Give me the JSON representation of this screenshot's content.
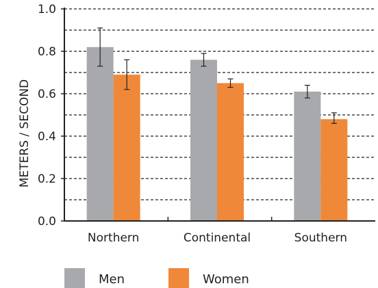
{
  "chart_data": {
    "type": "bar",
    "categories": [
      "Northern",
      "Continental",
      "Southern"
    ],
    "series": [
      {
        "name": "Men",
        "color": "#a7a9ac",
        "values": [
          0.82,
          0.76,
          0.61
        ],
        "error_low": [
          0.73,
          0.73,
          0.58
        ],
        "error_high": [
          0.91,
          0.79,
          0.64
        ]
      },
      {
        "name": "Women",
        "color": "#f0883a",
        "values": [
          0.69,
          0.65,
          0.48
        ],
        "error_low": [
          0.62,
          0.63,
          0.46
        ],
        "error_high": [
          0.76,
          0.67,
          0.51
        ]
      }
    ],
    "ylabel": "METERS / SECOND",
    "ylim": [
      0,
      1.0
    ],
    "yticks": [
      "0.0",
      "0.2",
      "0.4",
      "0.6",
      "0.8",
      "1.0"
    ],
    "ytick_values": [
      0,
      0.2,
      0.4,
      0.6,
      0.8,
      1.0
    ],
    "gridlines": [
      0.1,
      0.2,
      0.3,
      0.4,
      0.5,
      0.6,
      0.7,
      0.8,
      0.9,
      1.0
    ],
    "grid": "dashed horizontal",
    "legend_position": "bottom-left"
  }
}
